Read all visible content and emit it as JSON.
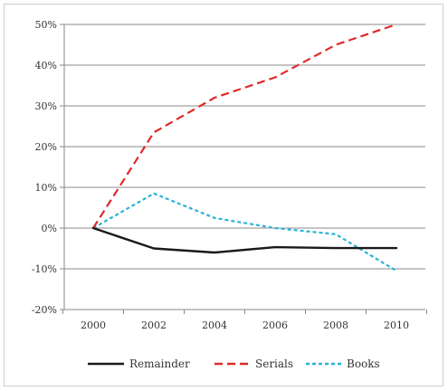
{
  "chart_data": {
    "type": "line",
    "x": [
      2000,
      2002,
      2004,
      2006,
      2008,
      2010
    ],
    "xlabel": "",
    "ylabel": "",
    "ylim": [
      -20,
      50
    ],
    "ytick_values": [
      -20,
      -10,
      0,
      10,
      20,
      30,
      40,
      50
    ],
    "ytick_labels": [
      "-20%",
      "-10%",
      "0%",
      "10%",
      "20%",
      "30%",
      "40%",
      "50%"
    ],
    "xtick_labels": [
      "2000",
      "2002",
      "2004",
      "2006",
      "2008",
      "2010"
    ],
    "grid": "horizontal",
    "legend_position": "bottom",
    "series": [
      {
        "name": "Remainder",
        "color": "#1a1a1a",
        "style": "solid",
        "values": [
          0,
          -5,
          -6,
          -4.7,
          -4.9,
          -4.9
        ]
      },
      {
        "name": "Serials",
        "color": "#e02a2a",
        "style": "dashed",
        "values": [
          0,
          23.5,
          32,
          37,
          45,
          50
        ]
      },
      {
        "name": "Books",
        "color": "#2bb3d6",
        "style": "dotted",
        "values": [
          0,
          8.5,
          2.5,
          0,
          -1.5,
          -10.5
        ]
      }
    ]
  }
}
